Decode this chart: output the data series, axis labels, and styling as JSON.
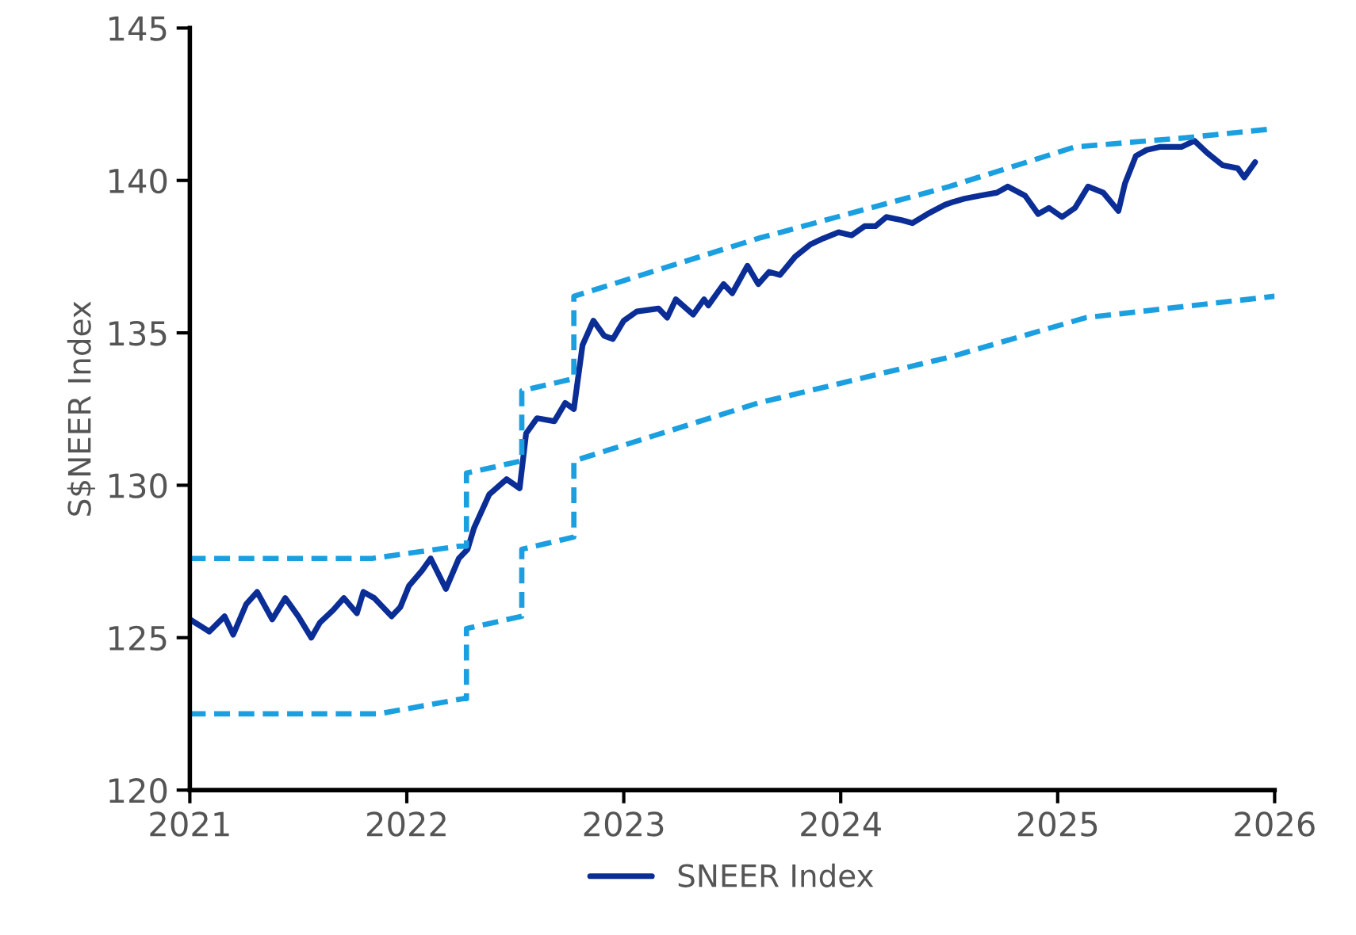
{
  "chart_data": {
    "type": "line",
    "ylabel": "S$NEER Index",
    "xlim": [
      2021,
      2026
    ],
    "xticks": [
      2021,
      2022,
      2023,
      2024,
      2025,
      2026
    ],
    "ylim": [
      120,
      145
    ],
    "yticks": [
      120,
      125,
      130,
      135,
      140,
      145
    ],
    "grid": false,
    "legend": "bottom",
    "marker": "none",
    "series": [
      {
        "name": "SNEER Index",
        "color": "#0b2d96",
        "line_style": "solid",
        "x": [
          2021.0,
          2021.09,
          2021.16,
          2021.2,
          2021.26,
          2021.31,
          2021.38,
          2021.44,
          2021.5,
          2021.56,
          2021.6,
          2021.66,
          2021.71,
          2021.77,
          2021.8,
          2021.85,
          2021.93,
          2021.97,
          2022.01,
          2022.07,
          2022.11,
          2022.18,
          2022.24,
          2022.28,
          2022.31,
          2022.38,
          2022.46,
          2022.52,
          2022.55,
          2022.6,
          2022.68,
          2022.73,
          2022.77,
          2022.81,
          2022.86,
          2022.91,
          2022.95,
          2023.0,
          2023.06,
          2023.16,
          2023.2,
          2023.24,
          2023.32,
          2023.37,
          2023.39,
          2023.46,
          2023.5,
          2023.57,
          2023.62,
          2023.67,
          2023.72,
          2023.79,
          2023.86,
          2023.92,
          2023.99,
          2024.05,
          2024.11,
          2024.16,
          2024.21,
          2024.28,
          2024.33,
          2024.4,
          2024.48,
          2024.52,
          2024.57,
          2024.64,
          2024.72,
          2024.77,
          2024.85,
          2024.91,
          2024.96,
          2025.02,
          2025.08,
          2025.14,
          2025.21,
          2025.28,
          2025.31,
          2025.36,
          2025.41,
          2025.47,
          2025.57,
          2025.63,
          2025.69,
          2025.76,
          2025.83,
          2025.86,
          2025.91
        ],
        "values": [
          125.6,
          125.2,
          125.7,
          125.1,
          126.1,
          126.5,
          125.6,
          126.3,
          125.7,
          125.0,
          125.5,
          125.9,
          126.3,
          125.8,
          126.5,
          126.3,
          125.7,
          126.0,
          126.7,
          127.2,
          127.6,
          126.6,
          127.6,
          127.9,
          128.6,
          129.7,
          130.2,
          129.9,
          131.7,
          132.2,
          132.1,
          132.7,
          132.5,
          134.6,
          135.4,
          134.9,
          134.8,
          135.4,
          135.7,
          135.8,
          135.5,
          136.1,
          135.6,
          136.1,
          135.9,
          136.6,
          136.3,
          137.2,
          136.6,
          137.0,
          136.9,
          137.5,
          137.9,
          138.1,
          138.3,
          138.2,
          138.5,
          138.5,
          138.8,
          138.7,
          138.6,
          138.9,
          139.2,
          139.3,
          139.4,
          139.5,
          139.6,
          139.8,
          139.5,
          138.9,
          139.1,
          138.8,
          139.1,
          139.8,
          139.6,
          139.0,
          139.9,
          140.8,
          141.0,
          141.1,
          141.1,
          141.3,
          140.9,
          140.5,
          140.4,
          140.1,
          140.6
        ]
      },
      {
        "color": "#1a9fe0",
        "line_style": "dashed",
        "x": [
          2021.0,
          2021.84,
          2022.24,
          2022.275,
          2022.275,
          2022.53,
          2022.53,
          2022.77,
          2022.77,
          2023.62,
          2024.5,
          2025.08,
          2025.59,
          2026.0
        ],
        "values": [
          127.6,
          127.6,
          128.0,
          128.0,
          130.4,
          130.8,
          133.1,
          133.5,
          136.2,
          138.1,
          139.8,
          141.1,
          141.4,
          141.7
        ]
      },
      {
        "color": "#1a9fe0",
        "line_style": "dashed",
        "x": [
          2021.0,
          2021.87,
          2022.26,
          2022.275,
          2022.275,
          2022.53,
          2022.53,
          2022.77,
          2022.77,
          2023.62,
          2024.5,
          2025.13,
          2026.0
        ],
        "values": [
          122.5,
          122.5,
          123.0,
          123.0,
          125.3,
          125.7,
          127.9,
          128.3,
          130.8,
          132.7,
          134.2,
          135.5,
          136.2
        ]
      }
    ]
  }
}
